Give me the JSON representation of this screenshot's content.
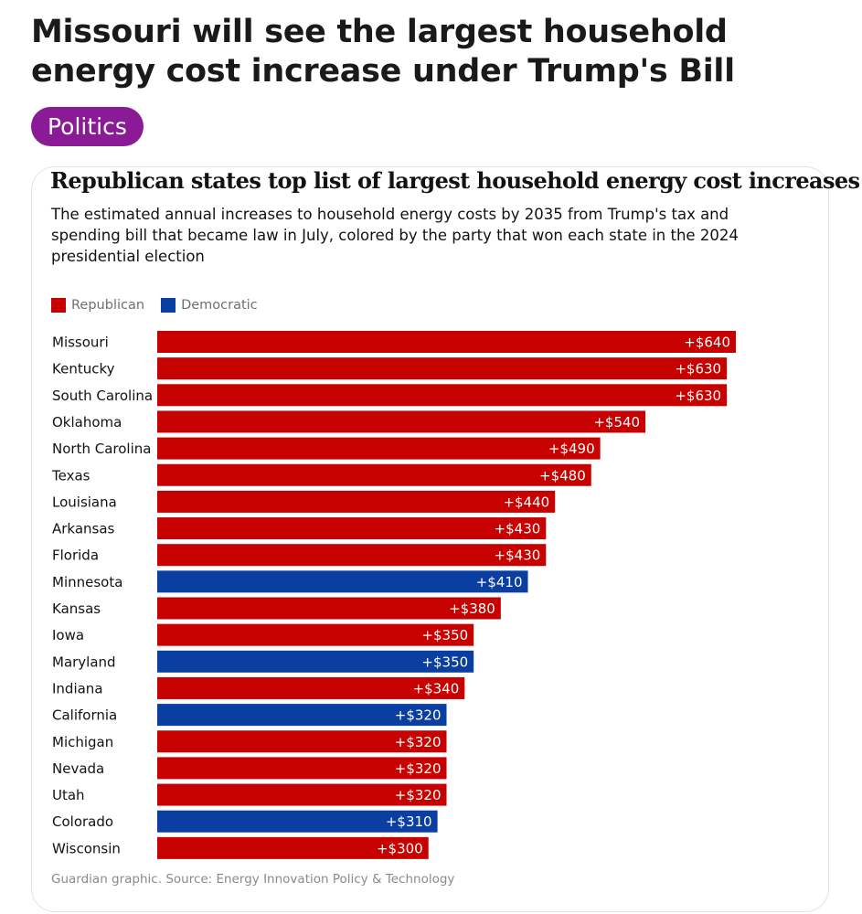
{
  "post": {
    "headline": "Missouri will see the largest household energy cost increase under Trump's Bill",
    "tag": "Politics"
  },
  "colors": {
    "republican": "#c70000",
    "democratic": "#0b3ea1",
    "tag": "#8a1a95"
  },
  "chart_data": {
    "type": "bar",
    "orientation": "horizontal",
    "title": "Republican states top list of largest household energy cost increases",
    "subtitle": "The estimated annual increases to household energy costs by 2035 from Trump's tax and spending bill that became law in July, colored by the party that won each state in the 2024 presidential election",
    "legend": [
      {
        "key": "R",
        "label": "Republican",
        "color": "#c70000"
      },
      {
        "key": "D",
        "label": "Democratic",
        "color": "#0b3ea1"
      }
    ],
    "legend_position": "top-left",
    "categories": [
      "Missouri",
      "Kentucky",
      "South Carolina",
      "Oklahoma",
      "North Carolina",
      "Texas",
      "Louisiana",
      "Arkansas",
      "Florida",
      "Minnesota",
      "Kansas",
      "Iowa",
      "Maryland",
      "Indiana",
      "California",
      "Michigan",
      "Nevada",
      "Utah",
      "Colorado",
      "Wisconsin"
    ],
    "values": [
      640,
      630,
      630,
      540,
      490,
      480,
      440,
      430,
      430,
      410,
      380,
      350,
      350,
      340,
      320,
      320,
      320,
      320,
      310,
      300
    ],
    "value_labels": [
      "+$640",
      "+$630",
      "+$630",
      "+$540",
      "+$490",
      "+$480",
      "+$440",
      "+$430",
      "+$430",
      "+$410",
      "+$380",
      "+$350",
      "+$350",
      "+$340",
      "+$320",
      "+$320",
      "+$320",
      "+$320",
      "+$310",
      "+$300"
    ],
    "party": [
      "R",
      "R",
      "R",
      "R",
      "R",
      "R",
      "R",
      "R",
      "R",
      "D",
      "R",
      "R",
      "D",
      "R",
      "D",
      "R",
      "R",
      "R",
      "D",
      "R"
    ],
    "xlim": [
      0,
      640
    ],
    "grid": false,
    "source": "Guardian graphic. Source: Energy Innovation Policy & Technology"
  }
}
